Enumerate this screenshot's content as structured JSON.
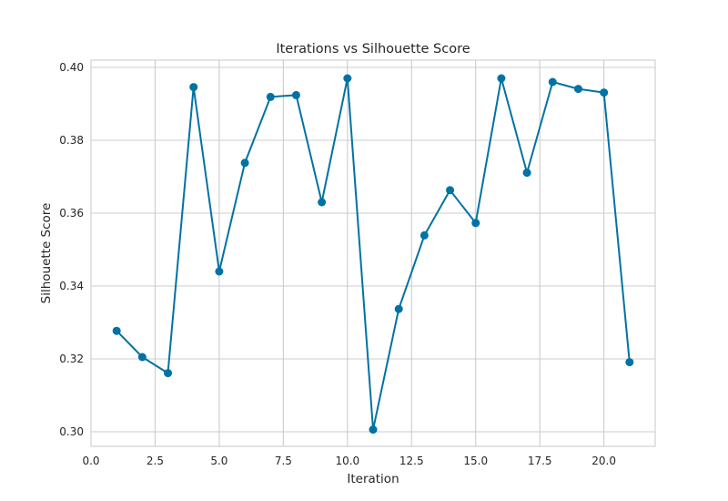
{
  "chart_data": {
    "type": "line",
    "title": "Iterations vs Silhouette Score",
    "xlabel": "Iteration",
    "ylabel": "Silhouette Score",
    "xlim": [
      0.0,
      22.0
    ],
    "ylim": [
      0.296,
      0.402
    ],
    "xticks": [
      0.0,
      2.5,
      5.0,
      7.5,
      10.0,
      12.5,
      15.0,
      17.5,
      20.0
    ],
    "xtick_labels": [
      "0.0",
      "2.5",
      "5.0",
      "7.5",
      "10.0",
      "12.5",
      "15.0",
      "17.5",
      "20.0"
    ],
    "yticks": [
      0.3,
      0.32,
      0.34,
      0.36,
      0.38,
      0.4
    ],
    "ytick_labels": [
      "0.30",
      "0.32",
      "0.34",
      "0.36",
      "0.38",
      "0.40"
    ],
    "grid": true,
    "series": [
      {
        "color": "#0072a3",
        "marker": "circle",
        "x": [
          1,
          2,
          3,
          4,
          5,
          6,
          7,
          8,
          9,
          10,
          11,
          12,
          13,
          14,
          15,
          16,
          17,
          18,
          19,
          20,
          21
        ],
        "y": [
          0.3277,
          0.3205,
          0.3161,
          0.3946,
          0.344,
          0.3738,
          0.3919,
          0.3924,
          0.363,
          0.397,
          0.3006,
          0.3337,
          0.3539,
          0.3663,
          0.3573,
          0.397,
          0.3711,
          0.396,
          0.3941,
          0.3931,
          0.3191
        ]
      }
    ]
  }
}
